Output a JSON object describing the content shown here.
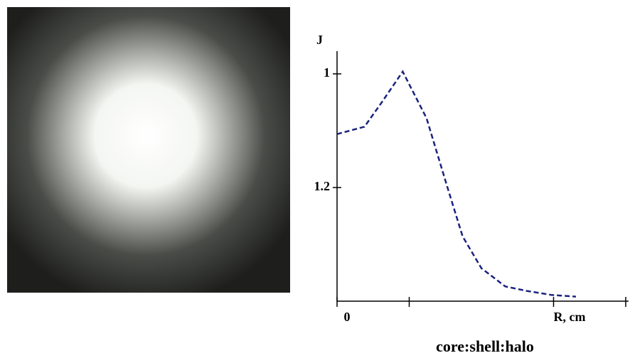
{
  "chart_data": {
    "type": "line",
    "y_label": "J",
    "caption": "core:shell:halo",
    "x": [
      0,
      0.38,
      0.62,
      0.91,
      1.24,
      1.54,
      1.74,
      2.0,
      2.33,
      2.63,
      2.97,
      3.31
    ],
    "series": [
      {
        "color": "#1a237e",
        "values": [
          1.106,
          1.093,
          1.05,
          0.996,
          1.078,
          1.204,
          1.286,
          1.342,
          1.374,
          1.382,
          1.389,
          1.392
        ]
      }
    ],
    "xlim": [
      0,
      4
    ],
    "xticks": [
      0,
      {
        "value": 3,
        "label": "R, cm"
      }
    ],
    "xticks_unlabeled": [
      1,
      4
    ],
    "ylim": [
      1.4,
      0.96
    ],
    "yticks": [
      1,
      1.2
    ]
  }
}
